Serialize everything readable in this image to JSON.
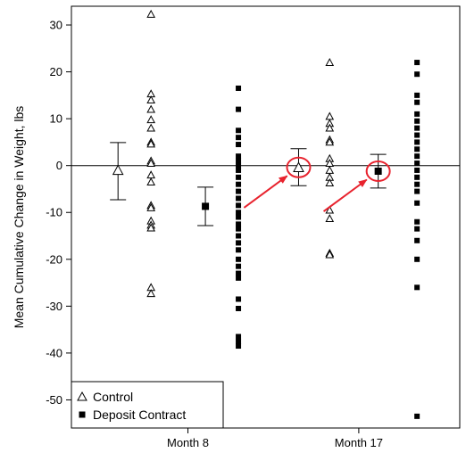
{
  "chart_data": {
    "type": "scatter",
    "title": "",
    "xlabel": "",
    "ylabel": "Mean Cumulative Change in Weight, lbs",
    "ylim": [
      -56,
      34
    ],
    "yticks": [
      30,
      20,
      10,
      0,
      -10,
      -20,
      -30,
      -40,
      -50
    ],
    "ytick_labels": [
      "30",
      "20",
      "10",
      "0",
      "-10",
      "-20",
      "-30",
      "-40",
      "-50"
    ],
    "xlim": [
      0,
      10
    ],
    "categories": [
      {
        "label": "Month 8",
        "x": 3
      },
      {
        "label": "Month 17",
        "x": 7.4
      }
    ],
    "reference_line_y": 0,
    "grid": false,
    "legend_position": "bottom-left",
    "legend": [
      {
        "marker": "triangle",
        "label": "Control"
      },
      {
        "marker": "square",
        "label": "Deposit Contract"
      }
    ],
    "series": [
      {
        "name": "Control",
        "marker": "triangle",
        "means": [
          {
            "x": 1.2,
            "y": -1.0,
            "lower": -7.3,
            "upper": 4.9
          },
          {
            "x": 5.85,
            "y": -0.4,
            "lower": -4.3,
            "upper": 3.6
          }
        ],
        "individuals": [
          {
            "x": 2.05,
            "values": [
              32.3,
              15.3,
              14.0,
              12.0,
              9.8,
              8.0,
              5.0,
              4.6,
              1.0,
              0.5,
              -2.0,
              -3.5,
              -8.5,
              -9.0,
              -11.8,
              -12.7,
              -13.3,
              -26.0,
              -27.3
            ]
          },
          {
            "x": 6.65,
            "values": [
              22.0,
              10.5,
              9.0,
              8.0,
              5.5,
              5.0,
              1.5,
              0.5,
              -1.0,
              -2.5,
              -3.7,
              -9.5,
              -11.3,
              -18.7,
              -19.0
            ]
          }
        ]
      },
      {
        "name": "Deposit Contract",
        "marker": "square",
        "means": [
          {
            "x": 3.45,
            "y": -8.7,
            "lower": -12.8,
            "upper": -4.6
          },
          {
            "x": 7.9,
            "y": -1.2,
            "lower": -4.8,
            "upper": 2.4
          }
        ],
        "individuals": [
          {
            "x": 4.3,
            "values": [
              16.5,
              12.0,
              7.5,
              6.0,
              4.5,
              2.0,
              1.0,
              0.0,
              -1.0,
              -2.5,
              -4.0,
              -5.5,
              -7.0,
              -8.5,
              -10.0,
              -11.0,
              -12.5,
              -13.5,
              -15.0,
              -16.5,
              -18.0,
              -20.0,
              -21.5,
              -23.0,
              -24.0,
              -28.5,
              -30.5,
              -36.5,
              -37.5,
              -38.5
            ]
          },
          {
            "x": 8.9,
            "values": [
              22.0,
              19.5,
              15.0,
              13.5,
              11.0,
              9.5,
              8.0,
              6.5,
              5.0,
              3.5,
              2.0,
              0.5,
              -1.0,
              -2.5,
              -4.0,
              -5.5,
              -8.0,
              -12.0,
              -13.5,
              -16.0,
              -20.0,
              -26.0,
              -53.5
            ]
          }
        ]
      }
    ],
    "annotations": {
      "highlighted_means": [
        {
          "series": "Control",
          "category": "Month 17"
        },
        {
          "series": "Deposit Contract",
          "category": "Month 17"
        }
      ],
      "color": "#e8232e"
    },
    "colors": {
      "axis": "#000000",
      "markers": "#000000",
      "annotation": "#e8232e"
    }
  }
}
